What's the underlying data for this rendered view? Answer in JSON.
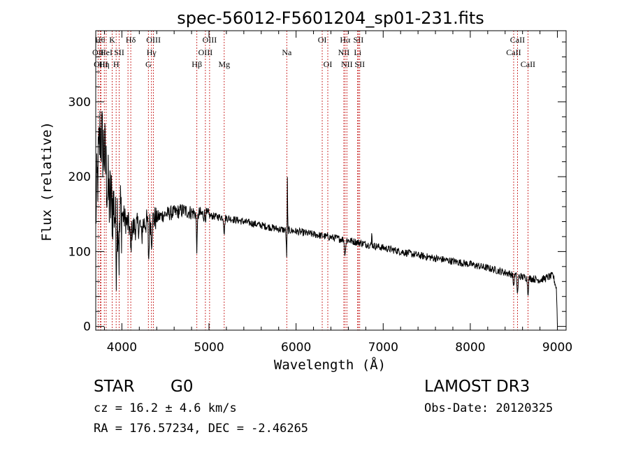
{
  "chart_data": {
    "type": "line",
    "title": "spec-56012-F5601204_sp01-231.fits",
    "xlabel": "Wavelength (Å)",
    "ylabel": "Flux (relative)",
    "xlim": [
      3700,
      9100
    ],
    "ylim": [
      -5,
      395
    ],
    "x_ticks": [
      4000,
      5000,
      6000,
      7000,
      8000,
      9000
    ],
    "y_ticks": [
      0,
      100,
      200,
      300
    ],
    "grid": false,
    "line_color": "#000000",
    "marker_color": "#c00000",
    "continuum_anchors": [
      [
        3700,
        150
      ],
      [
        3750,
        260
      ],
      [
        3800,
        230
      ],
      [
        3850,
        170
      ],
      [
        3900,
        160
      ],
      [
        4000,
        150
      ],
      [
        4100,
        130
      ],
      [
        4200,
        135
      ],
      [
        4300,
        140
      ],
      [
        4400,
        145
      ],
      [
        4500,
        150
      ],
      [
        4600,
        152
      ],
      [
        4700,
        155
      ],
      [
        4800,
        152
      ],
      [
        4900,
        150
      ],
      [
        5000,
        148
      ],
      [
        5200,
        145
      ],
      [
        5400,
        140
      ],
      [
        5600,
        135
      ],
      [
        5800,
        130
      ],
      [
        6000,
        127
      ],
      [
        6200,
        123
      ],
      [
        6400,
        119
      ],
      [
        6600,
        115
      ],
      [
        6800,
        110
      ],
      [
        7000,
        105
      ],
      [
        7200,
        100
      ],
      [
        7400,
        95
      ],
      [
        7600,
        91
      ],
      [
        7800,
        87
      ],
      [
        8000,
        83
      ],
      [
        8200,
        78
      ],
      [
        8400,
        72
      ],
      [
        8600,
        66
      ],
      [
        8800,
        62
      ],
      [
        8950,
        68
      ],
      [
        8990,
        50
      ],
      [
        9000,
        2
      ]
    ],
    "absorption_features": [
      {
        "x": 3934,
        "depth": 60
      },
      {
        "x": 3969,
        "depth": 55
      },
      {
        "x": 4102,
        "depth": 30
      },
      {
        "x": 4227,
        "depth": 20
      },
      {
        "x": 4308,
        "depth": 50
      },
      {
        "x": 4341,
        "depth": 25
      },
      {
        "x": 4861,
        "depth": 45
      },
      {
        "x": 5175,
        "depth": 20
      },
      {
        "x": 5893,
        "depth": 35
      },
      {
        "x": 6563,
        "depth": 30
      },
      {
        "x": 8498,
        "depth": 15
      },
      {
        "x": 8542,
        "depth": 25
      },
      {
        "x": 8662,
        "depth": 20
      }
    ],
    "emission_features": [
      {
        "x": 5900,
        "height": 85
      },
      {
        "x": 6565,
        "height": 18
      },
      {
        "x": 6870,
        "height": 20
      }
    ],
    "line_markers": [
      {
        "x": 3727,
        "label": "OII",
        "row": 1
      },
      {
        "x": 3750,
        "label": "Hθ",
        "row": 0
      },
      {
        "x": 3760,
        "label": "OIII",
        "row": 2
      },
      {
        "x": 3798,
        "label": "Hη",
        "row": 2
      },
      {
        "x": 3820,
        "label": "HeI",
        "row": 1
      },
      {
        "x": 3889,
        "label": "K",
        "row": 0
      },
      {
        "x": 3934,
        "label": "H",
        "row": 2
      },
      {
        "x": 3969,
        "label": "SII",
        "row": 1
      },
      {
        "x": 4102,
        "label": "Hδ",
        "row": 0
      },
      {
        "x": 4070,
        "label": "",
        "row": 3
      },
      {
        "x": 4304,
        "label": "G",
        "row": 2
      },
      {
        "x": 4340,
        "label": "Hγ",
        "row": 1
      },
      {
        "x": 4363,
        "label": "OIII",
        "row": 0
      },
      {
        "x": 4861,
        "label": "Hβ",
        "row": 2
      },
      {
        "x": 4959,
        "label": "OIII",
        "row": 1
      },
      {
        "x": 5007,
        "label": "OIII",
        "row": 0
      },
      {
        "x": 5175,
        "label": "Mg",
        "row": 2
      },
      {
        "x": 5893,
        "label": "Na",
        "row": 1
      },
      {
        "x": 6300,
        "label": "OI",
        "row": 0
      },
      {
        "x": 6364,
        "label": "OI",
        "row": 2
      },
      {
        "x": 6548,
        "label": "NII",
        "row": 1
      },
      {
        "x": 6563,
        "label": "Hα",
        "row": 0
      },
      {
        "x": 6583,
        "label": "NII",
        "row": 2
      },
      {
        "x": 6707,
        "label": "Li",
        "row": 1
      },
      {
        "x": 6716,
        "label": "SII",
        "row": 0
      },
      {
        "x": 6731,
        "label": "SII",
        "row": 2
      },
      {
        "x": 8498,
        "label": "CaII",
        "row": 1
      },
      {
        "x": 8542,
        "label": "CaII",
        "row": 0
      },
      {
        "x": 8662,
        "label": "CaII",
        "row": 2
      }
    ]
  },
  "info": {
    "class": "STAR",
    "subclass": "G0",
    "survey": "LAMOST DR3",
    "cz": "cz = 16.2 ± 4.6 km/s",
    "obs_date": "Obs-Date: 20120325",
    "coords": "RA = 176.57234, DEC =  -2.46265"
  }
}
